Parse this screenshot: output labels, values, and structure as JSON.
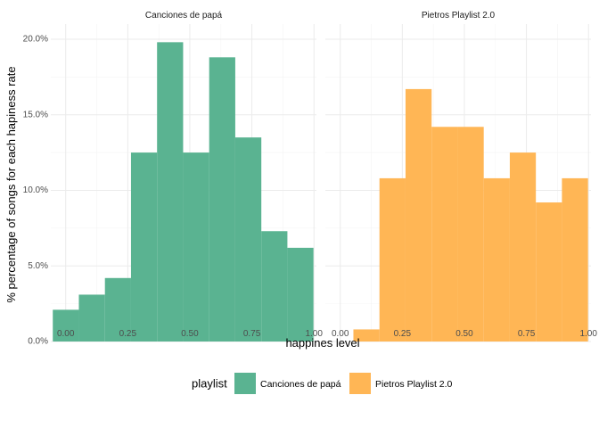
{
  "chart_data": {
    "type": "bar",
    "subtype": "faceted histogram",
    "xlabel": "happines level",
    "ylabel": "% percentage of songs for each hapiness rate",
    "xlim": [
      -0.06,
      1.01
    ],
    "ylim": [
      0,
      21
    ],
    "x_ticks": [
      0,
      0.25,
      0.5,
      0.75,
      1
    ],
    "x_tick_labels": [
      "0.00",
      "0.25",
      "0.50",
      "0.75",
      "1.00"
    ],
    "y_ticks": [
      0,
      5,
      10,
      15,
      20
    ],
    "y_tick_labels": [
      "0.0%",
      "5.0%",
      "10.0%",
      "15.0%",
      "20.0%"
    ],
    "grid": true,
    "legend": {
      "title": "playlist",
      "position": "bottom",
      "items": [
        "Canciones de papá",
        "Pietros Playlist 2.0"
      ]
    },
    "colors": {
      "Canciones de papá": "#5ab391",
      "Pietros Playlist 2.0": "#ffb655"
    },
    "bin_width": 0.105,
    "facets": [
      {
        "title": "Canciones de papá",
        "series_name": "Canciones de papá",
        "bin_starts": [
          -0.052,
          0.053,
          0.158,
          0.263,
          0.368,
          0.473,
          0.578,
          0.683,
          0.788,
          0.893
        ],
        "values": [
          2.1,
          3.1,
          4.2,
          12.5,
          19.8,
          12.5,
          18.8,
          13.5,
          7.3,
          6.2
        ]
      },
      {
        "title": "Pietros Playlist 2.0",
        "series_name": "Pietros Playlist 2.0",
        "bin_starts": [
          0.053,
          0.158,
          0.263,
          0.368,
          0.473,
          0.578,
          0.683,
          0.788,
          0.893
        ],
        "values": [
          0.8,
          10.8,
          16.7,
          14.2,
          14.2,
          10.8,
          12.5,
          9.2,
          10.8
        ]
      }
    ]
  }
}
